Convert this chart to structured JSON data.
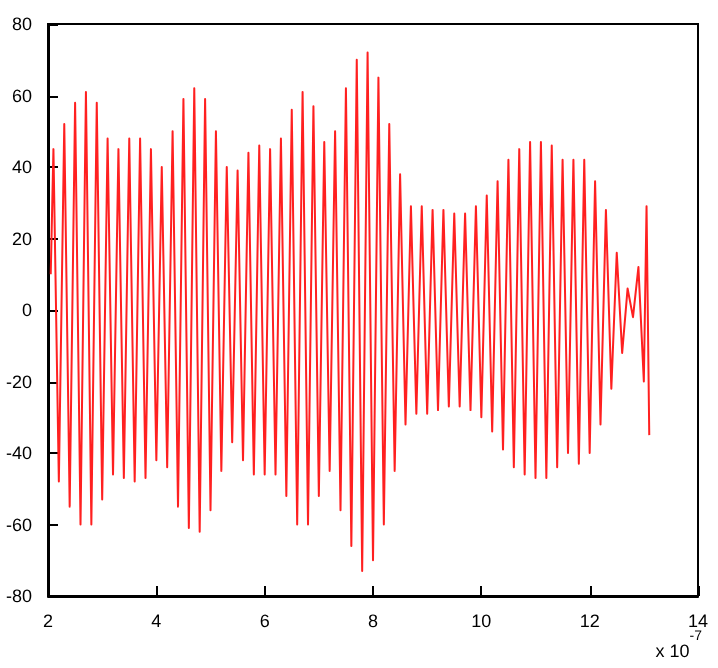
{
  "chart_data": {
    "type": "line",
    "series": [
      {
        "color": "#ff2020",
        "x": [
          2.05,
          2.1,
          2.2,
          2.3,
          2.4,
          2.5,
          2.6,
          2.7,
          2.8,
          2.9,
          3.0,
          3.1,
          3.2,
          3.3,
          3.4,
          3.5,
          3.6,
          3.7,
          3.8,
          3.9,
          4.0,
          4.1,
          4.2,
          4.3,
          4.4,
          4.5,
          4.6,
          4.7,
          4.8,
          4.9,
          5.0,
          5.1,
          5.2,
          5.3,
          5.4,
          5.5,
          5.6,
          5.7,
          5.8,
          5.9,
          6.0,
          6.1,
          6.2,
          6.3,
          6.4,
          6.5,
          6.6,
          6.7,
          6.8,
          6.9,
          7.0,
          7.1,
          7.2,
          7.3,
          7.4,
          7.5,
          7.6,
          7.7,
          7.8,
          7.9,
          8.0,
          8.1,
          8.2,
          8.3,
          8.4,
          8.5,
          8.6,
          8.7,
          8.8,
          8.9,
          9.0,
          9.1,
          9.2,
          9.3,
          9.4,
          9.5,
          9.6,
          9.7,
          9.8,
          9.9,
          10.0,
          10.1,
          10.2,
          10.3,
          10.4,
          10.5,
          10.6,
          10.7,
          10.8,
          10.9,
          11.0,
          11.1,
          11.2,
          11.3,
          11.4,
          11.5,
          11.6,
          11.7,
          11.8,
          11.9,
          12.0,
          12.1,
          12.2,
          12.3,
          12.4,
          12.5,
          12.6,
          12.7,
          12.8,
          12.9,
          13.0,
          13.05,
          13.1
        ],
        "values": [
          10,
          45,
          -48,
          52,
          -55,
          58,
          -60,
          61,
          -60,
          58,
          -53,
          48,
          -46,
          45,
          -47,
          48,
          -48,
          48,
          -47,
          45,
          -42,
          40,
          -44,
          50,
          -55,
          59,
          -61,
          62,
          -62,
          59,
          -56,
          50,
          -45,
          40,
          -37,
          39,
          -42,
          44,
          -46,
          46,
          -46,
          45,
          -46,
          48,
          -52,
          56,
          -60,
          61,
          -60,
          57,
          -52,
          47,
          -45,
          50,
          -56,
          62,
          -66,
          70,
          -73,
          72,
          -70,
          65,
          -60,
          52,
          -45,
          38,
          -32,
          29,
          -29,
          29,
          -29,
          28,
          -28,
          28,
          -27,
          27,
          -27,
          27,
          -28,
          29,
          -30,
          32,
          -34,
          36,
          -39,
          42,
          -44,
          45,
          -46,
          47,
          -47,
          47,
          -47,
          46,
          -44,
          42,
          -40,
          42,
          -43,
          42,
          -40,
          36,
          -32,
          28,
          -22,
          16,
          -12,
          6,
          -2,
          12,
          -20,
          29,
          -35
        ]
      }
    ],
    "xlim": [
      2,
      14
    ],
    "xticks": [
      2,
      4,
      6,
      8,
      10,
      12,
      14
    ],
    "ylim": [
      -80,
      80
    ],
    "yticks": [
      -80,
      -60,
      -40,
      -20,
      0,
      20,
      40,
      60,
      80
    ],
    "grid": false,
    "marker": "none",
    "line_style": "solid",
    "annotations": [
      "x 10$^{-7}$"
    ]
  }
}
